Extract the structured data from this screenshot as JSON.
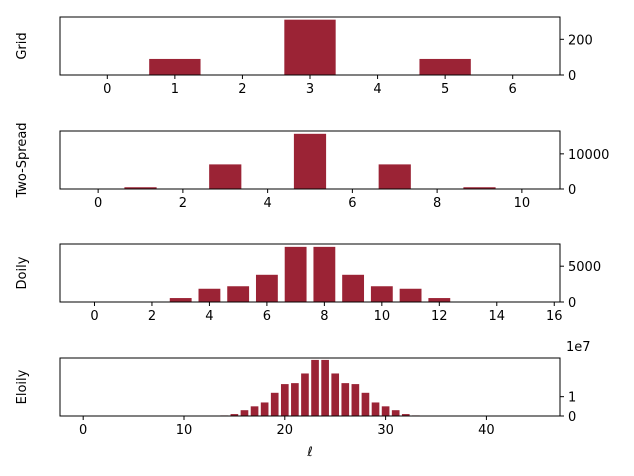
{
  "bar_color": "#9b2335",
  "xlabel": "ℓ",
  "chart_data": [
    {
      "type": "bar",
      "ylabel": "Grid",
      "x": [
        0,
        1,
        2,
        3,
        4,
        5,
        6
      ],
      "values": [
        0,
        90,
        0,
        310,
        0,
        90,
        0
      ],
      "xlim": [
        -0.7,
        6.7
      ],
      "ylim": [
        0,
        325
      ],
      "xticks": [
        0,
        1,
        2,
        3,
        4,
        5,
        6
      ],
      "yticks": [
        0,
        200
      ],
      "y_exponent": ""
    },
    {
      "type": "bar",
      "ylabel": "Two-Spread",
      "x": [
        0,
        1,
        2,
        3,
        4,
        5,
        6,
        7,
        8,
        9,
        10
      ],
      "values": [
        0,
        500,
        0,
        7000,
        0,
        15700,
        0,
        7000,
        0,
        500,
        0
      ],
      "xlim": [
        -0.9,
        10.9
      ],
      "ylim": [
        0,
        16500
      ],
      "xticks": [
        0,
        2,
        4,
        6,
        8,
        10
      ],
      "yticks": [
        0,
        10000
      ],
      "y_exponent": ""
    },
    {
      "type": "bar",
      "ylabel": "Doily",
      "x": [
        0,
        1,
        2,
        3,
        4,
        5,
        6,
        7,
        8,
        9,
        10,
        11,
        12,
        13,
        14,
        15,
        16
      ],
      "values": [
        0,
        0,
        0,
        550,
        1850,
        2200,
        3800,
        7700,
        7700,
        3800,
        2200,
        1850,
        550,
        0,
        0,
        0,
        0
      ],
      "xlim": [
        -1.2,
        16.2
      ],
      "ylim": [
        0,
        8100
      ],
      "xticks": [
        0,
        2,
        4,
        6,
        8,
        10,
        12,
        14,
        16
      ],
      "yticks": [
        0,
        5000
      ],
      "y_exponent": ""
    },
    {
      "type": "bar",
      "ylabel": "Eloily",
      "x": [
        0,
        1,
        2,
        3,
        4,
        5,
        6,
        7,
        8,
        9,
        10,
        11,
        12,
        13,
        14,
        15,
        16,
        17,
        18,
        19,
        20,
        21,
        22,
        23,
        24,
        25,
        26,
        27,
        28,
        29,
        30,
        31,
        32,
        33,
        34,
        35,
        36,
        37,
        38,
        39,
        40,
        41,
        42,
        43,
        44,
        45
      ],
      "values": [
        0,
        0,
        0,
        0,
        0,
        0,
        0,
        0,
        0,
        0,
        0,
        0,
        0,
        0,
        0.03,
        0.1,
        0.3,
        0.5,
        0.7,
        1.2,
        1.65,
        1.7,
        2.2,
        2.9,
        2.9,
        2.2,
        1.7,
        1.65,
        1.2,
        0.7,
        0.5,
        0.3,
        0.1,
        0.03,
        0,
        0,
        0,
        0,
        0,
        0,
        0,
        0,
        0,
        0,
        0,
        0
      ],
      "xlim": [
        -2.3,
        47.3
      ],
      "ylim": [
        0,
        3.0
      ],
      "xticks": [
        0,
        10,
        20,
        30,
        40
      ],
      "yticks": [
        0,
        1
      ],
      "y_exponent": "1e7"
    }
  ]
}
